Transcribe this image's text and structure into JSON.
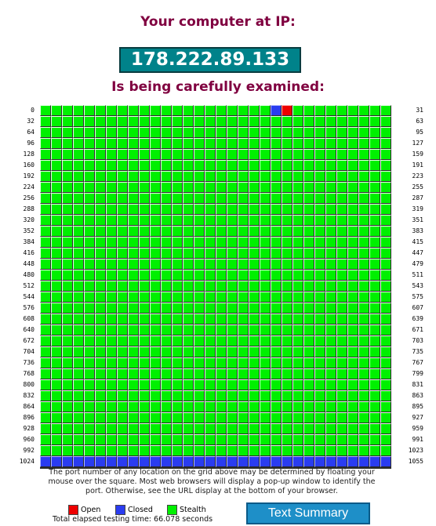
{
  "header": {
    "line1": "Your computer at IP:",
    "ip": "178.222.89.133",
    "line2": "Is being carefully examined:"
  },
  "grid": {
    "columns": 32,
    "rows": 33,
    "start_port": 0,
    "ports_per_row": 32,
    "left_labels": [
      "0",
      "32",
      "64",
      "96",
      "128",
      "160",
      "192",
      "224",
      "256",
      "288",
      "320",
      "352",
      "384",
      "416",
      "448",
      "480",
      "512",
      "544",
      "576",
      "608",
      "640",
      "672",
      "704",
      "736",
      "768",
      "800",
      "832",
      "864",
      "896",
      "928",
      "960",
      "992",
      "1024"
    ],
    "right_labels": [
      "31",
      "63",
      "95",
      "127",
      "159",
      "191",
      "223",
      "255",
      "287",
      "319",
      "351",
      "383",
      "415",
      "447",
      "479",
      "511",
      "543",
      "575",
      "607",
      "639",
      "671",
      "703",
      "735",
      "767",
      "799",
      "831",
      "863",
      "895",
      "927",
      "959",
      "991",
      "1023",
      "1055"
    ],
    "default_status": "stealth",
    "overrides": [
      {
        "port": 21,
        "status": "closed"
      },
      {
        "port": 22,
        "status": "open"
      }
    ],
    "row_status_overrides": [
      {
        "row": 32,
        "status": "closed"
      }
    ],
    "colors": {
      "stealth": "#00f000",
      "closed": "#2a3cf0",
      "open": "#ee0000"
    }
  },
  "note": "The port number of any location on the grid above may be determined by floating your mouse over the square. Most web browsers will display a pop-up window to identify the port. Otherwise, see the URL display at the bottom of your browser.",
  "legend": {
    "open": "Open",
    "closed": "Closed",
    "stealth": "Stealth"
  },
  "elapsed": "Total elapsed testing time: 66.078 seconds",
  "button": {
    "label": "Text Summary"
  }
}
